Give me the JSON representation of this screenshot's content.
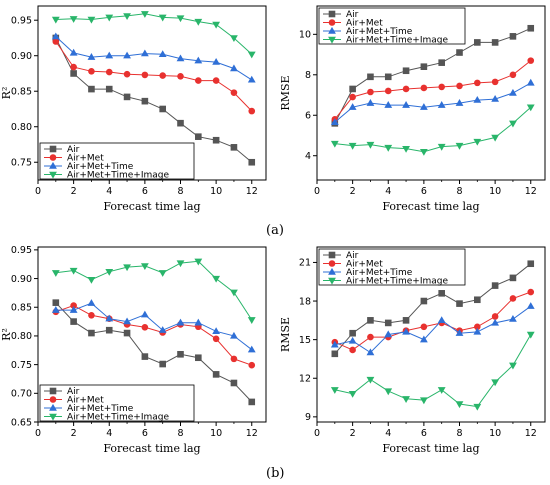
{
  "captions": {
    "a": "(a)",
    "b": "(b)"
  },
  "colors": {
    "Air": "#555555",
    "Air+Met": "#e8312f",
    "Air+Met+Time": "#2f6fd6",
    "Air+Met+Time+Image": "#29b56a"
  },
  "chart_data": [
    {
      "id": "a-r2",
      "type": "line",
      "xlabel": "Forecast time lag",
      "ylabel": "R²",
      "xlim": [
        0,
        12.8
      ],
      "ylim": [
        0.725,
        0.97
      ],
      "xticks": [
        0,
        2,
        4,
        6,
        8,
        10,
        12
      ],
      "yticks": [
        0.75,
        0.8,
        0.85,
        0.9,
        0.95
      ],
      "ytick_labels": [
        "0.75",
        "0.80",
        "0.85",
        "0.90",
        "0.95"
      ],
      "legend": "bottom-left",
      "grid": false,
      "x": [
        1,
        2,
        3,
        4,
        5,
        6,
        7,
        8,
        9,
        10,
        11,
        12
      ],
      "series": [
        {
          "name": "Air",
          "marker": "square",
          "values": [
            0.925,
            0.875,
            0.853,
            0.853,
            0.842,
            0.836,
            0.825,
            0.805,
            0.786,
            0.781,
            0.771,
            0.75
          ]
        },
        {
          "name": "Air+Met",
          "marker": "circle",
          "values": [
            0.92,
            0.884,
            0.878,
            0.877,
            0.874,
            0.873,
            0.872,
            0.871,
            0.865,
            0.865,
            0.848,
            0.822
          ]
        },
        {
          "name": "Air+Met+Time",
          "marker": "triangle-up",
          "values": [
            0.927,
            0.904,
            0.898,
            0.9,
            0.9,
            0.903,
            0.902,
            0.896,
            0.893,
            0.891,
            0.882,
            0.866
          ]
        },
        {
          "name": "Air+Met+Time+Image",
          "marker": "triangle-down",
          "values": [
            0.951,
            0.952,
            0.951,
            0.954,
            0.956,
            0.959,
            0.954,
            0.953,
            0.948,
            0.944,
            0.925,
            0.902
          ]
        }
      ]
    },
    {
      "id": "a-rmse",
      "type": "line",
      "xlabel": "Forecast time lag",
      "ylabel": "RMSE",
      "xlim": [
        0,
        12.8
      ],
      "ylim": [
        2.8,
        11.4
      ],
      "xticks": [
        0,
        2,
        4,
        6,
        8,
        10,
        12
      ],
      "yticks": [
        4,
        6,
        8,
        10
      ],
      "ytick_labels": [
        "4",
        "6",
        "8",
        "10"
      ],
      "legend": "top-left",
      "grid": false,
      "x": [
        1,
        2,
        3,
        4,
        5,
        6,
        7,
        8,
        9,
        10,
        11,
        12
      ],
      "series": [
        {
          "name": "Air",
          "marker": "square",
          "values": [
            5.6,
            7.3,
            7.9,
            7.9,
            8.2,
            8.4,
            8.6,
            9.1,
            9.6,
            9.6,
            9.9,
            10.3
          ]
        },
        {
          "name": "Air+Met",
          "marker": "circle",
          "values": [
            5.8,
            6.9,
            7.15,
            7.2,
            7.3,
            7.35,
            7.4,
            7.45,
            7.6,
            7.65,
            8.0,
            8.7
          ]
        },
        {
          "name": "Air+Met+Time",
          "marker": "triangle-up",
          "values": [
            5.65,
            6.4,
            6.6,
            6.5,
            6.5,
            6.4,
            6.5,
            6.6,
            6.75,
            6.8,
            7.1,
            7.6
          ]
        },
        {
          "name": "Air+Met+Time+Image",
          "marker": "triangle-down",
          "values": [
            4.6,
            4.5,
            4.55,
            4.4,
            4.35,
            4.2,
            4.45,
            4.5,
            4.7,
            4.9,
            5.6,
            6.4
          ]
        }
      ]
    },
    {
      "id": "b-r2",
      "type": "line",
      "xlabel": "Forecast time lag",
      "ylabel": "R²",
      "xlim": [
        0,
        12.8
      ],
      "ylim": [
        0.65,
        0.955
      ],
      "xticks": [
        0,
        2,
        4,
        6,
        8,
        10,
        12
      ],
      "yticks": [
        0.65,
        0.7,
        0.75,
        0.8,
        0.85,
        0.9,
        0.95
      ],
      "ytick_labels": [
        "0.65",
        "0.70",
        "0.75",
        "0.80",
        "0.85",
        "0.90",
        "0.95"
      ],
      "legend": "bottom-left",
      "grid": false,
      "x": [
        1,
        2,
        3,
        4,
        5,
        6,
        7,
        8,
        9,
        10,
        11,
        12
      ],
      "series": [
        {
          "name": "Air",
          "marker": "square",
          "values": [
            0.858,
            0.825,
            0.805,
            0.81,
            0.805,
            0.764,
            0.751,
            0.768,
            0.762,
            0.733,
            0.718,
            0.685
          ]
        },
        {
          "name": "Air+Met",
          "marker": "circle",
          "values": [
            0.842,
            0.853,
            0.836,
            0.83,
            0.82,
            0.815,
            0.806,
            0.82,
            0.816,
            0.795,
            0.76,
            0.749
          ]
        },
        {
          "name": "Air+Met+Time",
          "marker": "triangle-up",
          "values": [
            0.845,
            0.845,
            0.857,
            0.83,
            0.825,
            0.837,
            0.81,
            0.823,
            0.823,
            0.808,
            0.8,
            0.776
          ]
        },
        {
          "name": "Air+Met+Time+Image",
          "marker": "triangle-down",
          "values": [
            0.91,
            0.914,
            0.898,
            0.912,
            0.92,
            0.922,
            0.91,
            0.927,
            0.93,
            0.9,
            0.876,
            0.828
          ]
        }
      ]
    },
    {
      "id": "b-rmse",
      "type": "line",
      "xlabel": "Forecast time lag",
      "ylabel": "RMSE",
      "xlim": [
        0,
        12.8
      ],
      "ylim": [
        8.6,
        22.2
      ],
      "xticks": [
        0,
        2,
        4,
        6,
        8,
        10,
        12
      ],
      "yticks": [
        9,
        12,
        15,
        18,
        21
      ],
      "ytick_labels": [
        "9",
        "12",
        "15",
        "18",
        "21"
      ],
      "legend": "top-left",
      "grid": false,
      "x": [
        1,
        2,
        3,
        4,
        5,
        6,
        7,
        8,
        9,
        10,
        11,
        12
      ],
      "series": [
        {
          "name": "Air",
          "marker": "square",
          "values": [
            13.9,
            15.5,
            16.5,
            16.3,
            16.5,
            18.0,
            18.6,
            17.8,
            18.1,
            19.2,
            19.8,
            20.9
          ]
        },
        {
          "name": "Air+Met",
          "marker": "circle",
          "values": [
            14.8,
            14.2,
            15.2,
            15.2,
            15.7,
            16.0,
            16.3,
            15.7,
            16.0,
            16.8,
            18.2,
            18.7
          ]
        },
        {
          "name": "Air+Met+Time",
          "marker": "triangle-up",
          "values": [
            14.6,
            14.9,
            14.0,
            15.4,
            15.6,
            15.0,
            16.5,
            15.5,
            15.6,
            16.3,
            16.6,
            17.6
          ]
        },
        {
          "name": "Air+Met+Time+Image",
          "marker": "triangle-down",
          "values": [
            11.1,
            10.8,
            11.9,
            11.0,
            10.4,
            10.3,
            11.1,
            10.0,
            9.8,
            11.7,
            13.0,
            15.4
          ]
        }
      ]
    }
  ]
}
